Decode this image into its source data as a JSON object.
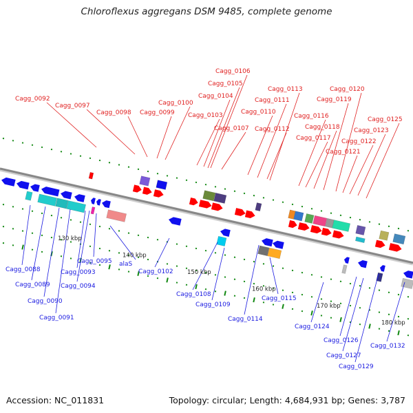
{
  "title": "Chloroflexus aggregans DSM 9485, complete genome",
  "footer": {
    "accession": "Accession: NC_011831",
    "summary": "Topology: circular; Length: 4,684,931 bp; Genes: 3,787"
  },
  "colors": {
    "forward_label": "#e02020",
    "reverse_label": "#1a1ae0",
    "forward_gene": "#ff0000",
    "reverse_gene": "#1010ee",
    "backbone": "#888888",
    "tick_green": "#118811"
  },
  "scale": {
    "labels": [
      {
        "text": "130 kbp",
        "kbp": 130
      },
      {
        "text": "140 kbp",
        "kbp": 140
      },
      {
        "text": "150 kbp",
        "kbp": 150
      },
      {
        "text": "160 kbp",
        "kbp": 160
      },
      {
        "text": "170 kbp",
        "kbp": 170
      },
      {
        "text": "180 kbp",
        "kbp": 180
      }
    ]
  },
  "labels_top": [
    "Cagg_0092",
    "Cagg_0097",
    "Cagg_0098",
    "Cagg_0099",
    "Cagg_0100",
    "Cagg_0103",
    "Cagg_0104",
    "Cagg_0105",
    "Cagg_0106",
    "Cagg_0107",
    "Cagg_0110",
    "Cagg_0111",
    "Cagg_0112",
    "Cagg_0113",
    "Cagg_0116",
    "Cagg_0117",
    "Cagg_0118",
    "Cagg_0119",
    "Cagg_0120",
    "Cagg_0121",
    "Cagg_0122",
    "Cagg_0123",
    "Cagg_0125"
  ],
  "labels_bottom": [
    "Cagg_0088",
    "Cagg_0089",
    "Cagg_0090",
    "Cagg_0091",
    "Cagg_0093",
    "Cagg_0094",
    "Cagg_0095",
    "alaS",
    "Cagg_0102",
    "Cagg_0108",
    "Cagg_0109",
    "Cagg_0114",
    "Cagg_0115",
    "Cagg_0124",
    "Cagg_0126",
    "Cagg_0127",
    "Cagg_0129",
    "Cagg_0132"
  ]
}
